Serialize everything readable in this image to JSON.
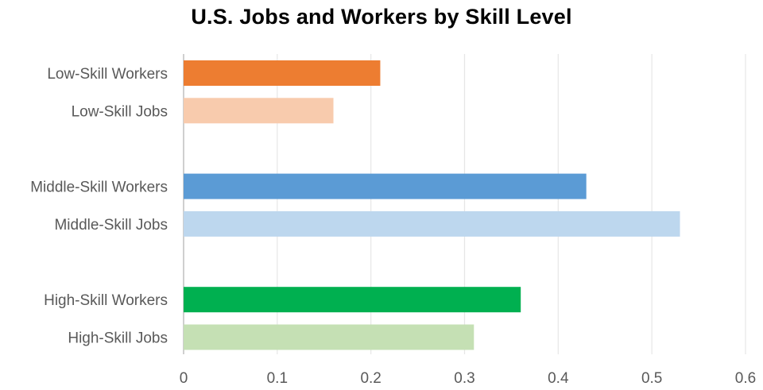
{
  "chart_data": {
    "type": "bar",
    "orientation": "horizontal",
    "title": "U.S. Jobs and Workers by Skill Level",
    "xlabel": "",
    "ylabel": "",
    "xlim": [
      0,
      0.6
    ],
    "xticks": [
      "0",
      "0.1",
      "0.2",
      "0.3",
      "0.4",
      "0.5",
      "0.6"
    ],
    "grid": true,
    "legend": "none",
    "groups": [
      {
        "bars": [
          {
            "label": "Low-Skill Workers",
            "value": 0.21,
            "color": "#ED7D31"
          },
          {
            "label": "Low-Skill Jobs",
            "value": 0.16,
            "color": "#F8CBAD"
          }
        ]
      },
      {
        "bars": [
          {
            "label": "Middle-Skill Workers",
            "value": 0.43,
            "color": "#5B9BD5"
          },
          {
            "label": "Middle-Skill Jobs",
            "value": 0.53,
            "color": "#BDD7EE"
          }
        ]
      },
      {
        "bars": [
          {
            "label": "High-Skill Workers",
            "value": 0.36,
            "color": "#00B050"
          },
          {
            "label": "High-Skill Jobs",
            "value": 0.31,
            "color": "#C5E0B4"
          }
        ]
      }
    ]
  }
}
